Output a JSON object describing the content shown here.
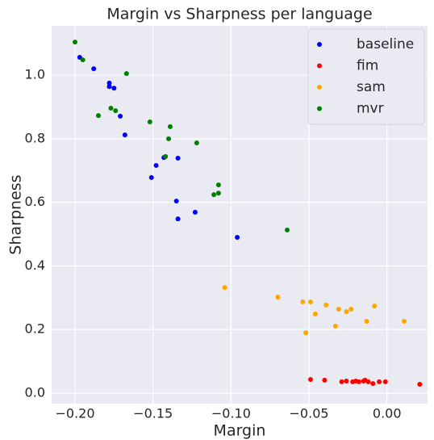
{
  "chart_data": {
    "type": "scatter",
    "title": "Margin vs Sharpness per language",
    "x_label": "Margin",
    "y_label": "Sharpness",
    "xlim": [
      -0.215,
      0.026
    ],
    "ylim": [
      -0.033,
      1.155
    ],
    "xticks": [
      {
        "value": -0.2,
        "label": "−0.20"
      },
      {
        "value": -0.15,
        "label": "−0.15"
      },
      {
        "value": -0.1,
        "label": "−0.10"
      },
      {
        "value": -0.05,
        "label": "−0.05"
      },
      {
        "value": 0,
        "label": "0.00"
      }
    ],
    "yticks": [
      {
        "value": 0,
        "label": "0.0"
      },
      {
        "value": 0.2,
        "label": "0.2"
      },
      {
        "value": 0.4,
        "label": "0.4"
      },
      {
        "value": 0.6,
        "label": "0.6"
      },
      {
        "value": 0.8,
        "label": "0.8"
      },
      {
        "value": 1.0,
        "label": "1.0"
      }
    ],
    "grid": true,
    "legend": "upper right",
    "series": [
      {
        "name": "baseline",
        "color": "blue",
        "x": [
          -0.197,
          -0.188,
          -0.178,
          -0.178,
          -0.175,
          -0.171,
          -0.168,
          -0.148,
          -0.143,
          -0.151,
          -0.134,
          -0.135,
          -0.134,
          -0.123,
          -0.096
        ],
        "values": [
          1.056,
          1.02,
          0.975,
          0.964,
          0.959,
          0.871,
          0.812,
          0.716,
          0.741,
          0.678,
          0.739,
          0.604,
          0.548,
          0.569,
          0.49
        ]
      },
      {
        "name": "fim",
        "color": "red",
        "x": [
          -0.049,
          -0.04,
          -0.029,
          -0.026,
          -0.022,
          -0.02,
          -0.018,
          -0.015,
          -0.014,
          -0.012,
          -0.009,
          -0.005,
          -0.001,
          0.021
        ],
        "values": [
          0.043,
          0.041,
          0.036,
          0.038,
          0.036,
          0.038,
          0.036,
          0.038,
          0.041,
          0.036,
          0.03,
          0.036,
          0.036,
          0.028
        ]
      },
      {
        "name": "sam",
        "color": "orange",
        "x": [
          -0.104,
          -0.07,
          -0.054,
          -0.049,
          -0.046,
          -0.052,
          -0.039,
          -0.031,
          -0.033,
          -0.026,
          -0.023,
          -0.008,
          -0.013,
          0.011
        ],
        "values": [
          0.332,
          0.302,
          0.287,
          0.287,
          0.249,
          0.19,
          0.277,
          0.264,
          0.211,
          0.256,
          0.264,
          0.274,
          0.226,
          0.226
        ]
      },
      {
        "name": "mvr",
        "color": "green",
        "x": [
          -0.2,
          -0.195,
          -0.167,
          -0.177,
          -0.174,
          -0.185,
          -0.152,
          -0.139,
          -0.14,
          -0.142,
          -0.122,
          -0.108,
          -0.108,
          -0.111,
          -0.064
        ],
        "values": [
          1.104,
          1.048,
          1.005,
          0.896,
          0.888,
          0.873,
          0.853,
          0.838,
          0.8,
          0.744,
          0.787,
          0.655,
          0.629,
          0.624,
          0.513
        ]
      }
    ]
  }
}
